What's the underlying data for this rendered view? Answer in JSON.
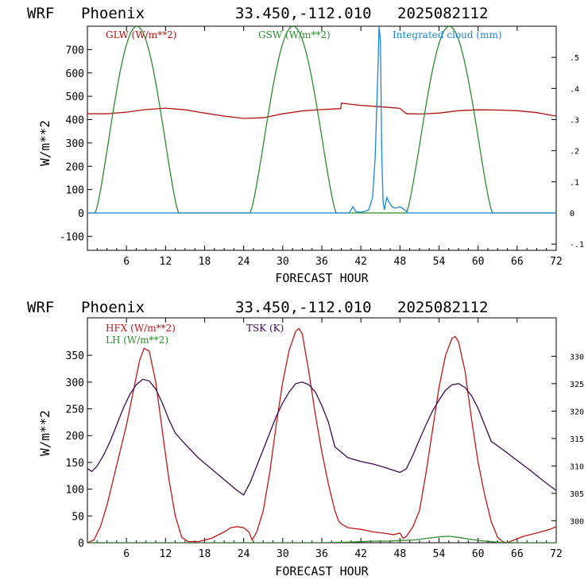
{
  "panels": [
    {
      "header": {
        "model": "WRF",
        "location": "Phoenix",
        "coords": "33.450,-112.010",
        "run": "2025082112"
      },
      "legend": [
        {
          "label": "GLW (W/m**2)",
          "color": "#b01010"
        },
        {
          "label": "GSW (W/m**2)",
          "color": "#2e8b2e"
        },
        {
          "label": "Integrated cloud (mm)",
          "color": "#1a86d8"
        }
      ]
    },
    {
      "header": {
        "model": "WRF",
        "location": "Phoenix",
        "coords": "33.450,-112.010",
        "run": "2025082112"
      },
      "legend": [
        {
          "label": "HFX (W/m**2)",
          "color": "#c01818"
        },
        {
          "label": "LH  (W/m**2)",
          "color": "#2e8b2e"
        },
        {
          "label": "TSK (K)",
          "color": "#3c0a50"
        }
      ]
    }
  ],
  "chart_data": [
    {
      "type": "line",
      "xlabel": "FORECAST HOUR",
      "ylabel": "W/m**2",
      "xlim": [
        0,
        72
      ],
      "ylim": [
        -160,
        800
      ],
      "y2lim": [
        -0.12,
        0.6
      ],
      "x_ticks": [
        6,
        12,
        18,
        24,
        30,
        36,
        42,
        48,
        54,
        60,
        66,
        72
      ],
      "y_ticks": [
        -100,
        0,
        100,
        200,
        300,
        400,
        500,
        600,
        700
      ],
      "y2_ticks": [
        {
          "value": -0.1,
          "label": "-.1"
        },
        {
          "value": 0,
          "label": "0"
        },
        {
          "value": 0.1,
          "label": ".1"
        },
        {
          "value": 0.2,
          "label": ".2"
        },
        {
          "value": 0.3,
          "label": ".3"
        },
        {
          "value": 0.4,
          "label": ".4"
        },
        {
          "value": 0.5,
          "label": ".5"
        }
      ],
      "series": [
        {
          "name": "GLW (W/m**2)",
          "axis": "left",
          "color": "#b01010",
          "x": [
            0,
            3,
            6,
            9,
            12,
            15,
            18,
            21,
            24,
            27,
            30,
            33,
            36,
            38.9,
            39,
            42,
            45,
            48,
            49,
            50,
            51,
            54,
            57,
            60,
            63,
            66,
            69,
            72
          ],
          "y": [
            425,
            425,
            432,
            443,
            449,
            442,
            428,
            415,
            405,
            408,
            425,
            437,
            443,
            447,
            470,
            461,
            455,
            448,
            425,
            425,
            424,
            428,
            438,
            442,
            441,
            438,
            430,
            415
          ]
        },
        {
          "name": "GSW (W/m**2)",
          "axis": "left",
          "color": "#2e8b2e",
          "kind": "daily-bell",
          "days": [
            {
              "start": 1.2,
              "peak": 7.6,
              "end": 14.0
            },
            {
              "start": 25.0,
              "peak": 31.6,
              "end": 38.2
            },
            {
              "start": 49.0,
              "peak": 55.6,
              "end": 62.2
            }
          ],
          "peak_value": 800
        },
        {
          "name": "Integrated cloud (mm)",
          "axis": "right",
          "color": "#1a86d8",
          "x": [
            0,
            40.2,
            40.8,
            41.2,
            41.8,
            42.5,
            43.2,
            43.8,
            44.2,
            44.6,
            44.8,
            45.0,
            45.2,
            45.4,
            45.6,
            45.8,
            46.0,
            46.3,
            46.8,
            47.3,
            48.0,
            48.6,
            49.2,
            72
          ],
          "y": [
            0,
            0,
            0.02,
            0.005,
            0.002,
            0.004,
            0.01,
            0.05,
            0.18,
            0.45,
            0.6,
            0.55,
            0.2,
            0.04,
            0.01,
            0.03,
            0.05,
            0.035,
            0.02,
            0.015,
            0.02,
            0.012,
            0,
            0
          ]
        }
      ]
    },
    {
      "type": "line",
      "xlabel": "FORECAST HOUR",
      "ylabel": "W/m**2",
      "xlim": [
        0,
        72
      ],
      "ylim": [
        0,
        420
      ],
      "y2lim": [
        296,
        337
      ],
      "x_ticks": [
        6,
        12,
        18,
        24,
        30,
        36,
        42,
        48,
        54,
        60,
        66,
        72
      ],
      "y_ticks": [
        0,
        50,
        100,
        150,
        200,
        250,
        300,
        350
      ],
      "y2_ticks": [
        {
          "value": 300,
          "label": "300"
        },
        {
          "value": 305,
          "label": "305"
        },
        {
          "value": 310,
          "label": "310"
        },
        {
          "value": 315,
          "label": "315"
        },
        {
          "value": 320,
          "label": "320"
        },
        {
          "value": 325,
          "label": "325"
        },
        {
          "value": 330,
          "label": "330"
        }
      ],
      "series": [
        {
          "name": "HFX (W/m**2)",
          "axis": "left",
          "color": "#c01818",
          "x": [
            0,
            1,
            2,
            3,
            4,
            5,
            6,
            7,
            8,
            8.7,
            9.5,
            10.5,
            11.5,
            12.5,
            13.5,
            14.5,
            15.5,
            17,
            19,
            21,
            22,
            23,
            24,
            24.8,
            25.3,
            26,
            27,
            28,
            29,
            30,
            31,
            32,
            32.5,
            33,
            34,
            35,
            36,
            37,
            38,
            38.6,
            39,
            40,
            42,
            44,
            46,
            47,
            48,
            48.5,
            49,
            50,
            51,
            52,
            53,
            54,
            55,
            56,
            56.5,
            57,
            58,
            59,
            60,
            61,
            62,
            63,
            63.8,
            64.5,
            65.5,
            67,
            69,
            71,
            72
          ],
          "y": [
            0,
            5,
            30,
            70,
            120,
            170,
            220,
            280,
            340,
            363,
            358,
            300,
            210,
            120,
            50,
            10,
            2,
            2,
            8,
            20,
            28,
            30,
            28,
            20,
            5,
            20,
            60,
            130,
            220,
            300,
            360,
            395,
            400,
            390,
            320,
            240,
            170,
            110,
            60,
            40,
            35,
            28,
            25,
            20,
            17,
            15,
            18,
            8,
            12,
            30,
            60,
            130,
            210,
            290,
            350,
            382,
            385,
            375,
            320,
            230,
            150,
            90,
            40,
            10,
            2,
            0,
            5,
            12,
            18,
            25,
            30
          ]
        },
        {
          "name": "LH  (W/m**2)",
          "axis": "left",
          "color": "#2e8b2e",
          "x": [
            0,
            36,
            38,
            40,
            42,
            44,
            46,
            48,
            50,
            52,
            54,
            55.5,
            57,
            59,
            61,
            63,
            65,
            72
          ],
          "y": [
            0,
            0,
            0.5,
            1,
            2,
            3,
            3,
            4,
            5,
            8,
            11,
            12,
            10,
            6,
            3,
            1,
            0,
            0
          ]
        },
        {
          "name": "TSK (K)",
          "axis": "right",
          "color": "#3c0a50",
          "x": [
            0,
            0.7,
            1.5,
            2.5,
            3.5,
            4.5,
            5.5,
            6.5,
            7.5,
            8.5,
            9.5,
            10.5,
            11.5,
            12.5,
            13.5,
            15,
            17,
            19,
            21,
            23,
            24,
            25,
            26,
            27,
            28,
            29,
            30,
            31,
            32,
            33,
            34,
            35,
            36,
            37,
            38,
            40,
            42,
            44,
            46,
            47,
            48,
            49,
            50,
            51,
            52,
            53,
            54,
            55,
            56,
            57,
            58,
            59,
            60,
            61,
            62,
            64,
            66,
            68,
            70,
            72
          ],
          "y": [
            309.5,
            309.0,
            310.0,
            312.0,
            314.5,
            317.5,
            320.5,
            323.0,
            324.8,
            325.8,
            325.5,
            324.0,
            321.5,
            318.5,
            316.0,
            314.0,
            311.5,
            309.5,
            307.5,
            305.5,
            304.7,
            307.0,
            310.0,
            313.0,
            316.0,
            319.0,
            321.5,
            323.5,
            325.0,
            325.3,
            324.8,
            323.5,
            321.0,
            318.0,
            313.5,
            311.5,
            310.8,
            310.3,
            309.6,
            309.2,
            308.8,
            309.5,
            312.0,
            314.8,
            317.5,
            320.0,
            322.0,
            323.8,
            324.8,
            325.0,
            324.3,
            322.8,
            320.5,
            317.5,
            314.5,
            312.8,
            311.0,
            309.2,
            307.3,
            305.5
          ]
        }
      ]
    }
  ]
}
